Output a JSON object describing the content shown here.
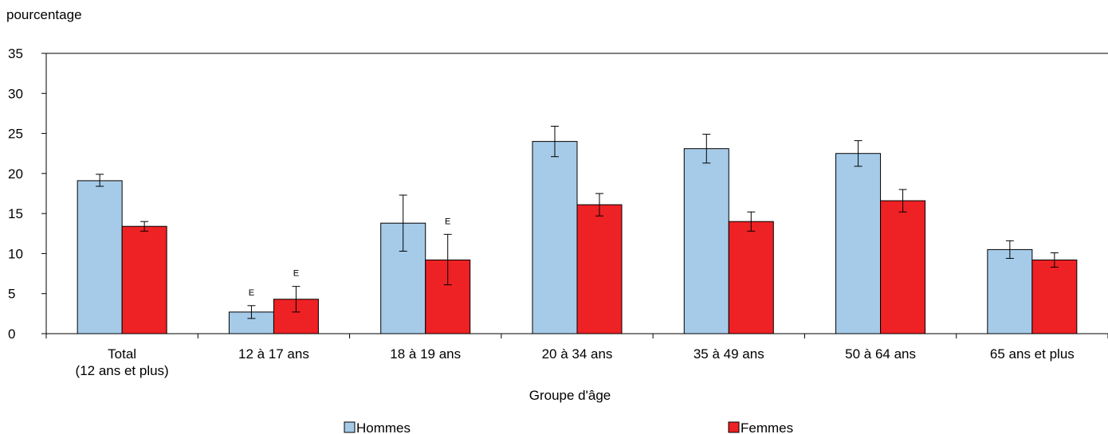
{
  "chart_data": {
    "type": "bar",
    "ylabel": "pourcentage",
    "xlabel": "Groupe d'âge",
    "ylim": [
      0,
      35
    ],
    "yticks": [
      0,
      5,
      10,
      15,
      20,
      25,
      30,
      35
    ],
    "grid": false,
    "legend_position": "bottom",
    "categories": [
      [
        "Total",
        "(12 ans et plus)"
      ],
      [
        "12 à 17 ans"
      ],
      [
        "18 à 19 ans"
      ],
      [
        "20 à 34 ans"
      ],
      [
        "35 à 49 ans"
      ],
      [
        "50 à 64 ans"
      ],
      [
        "65 ans et plus"
      ]
    ],
    "series": [
      {
        "name": "Hommes",
        "color": "#a6cbe9",
        "values": [
          19.1,
          2.7,
          13.8,
          24.0,
          23.1,
          22.5,
          10.5
        ],
        "error_low": [
          18.4,
          1.9,
          10.3,
          22.1,
          21.3,
          20.9,
          9.4
        ],
        "error_high": [
          19.9,
          3.5,
          17.3,
          25.9,
          24.9,
          24.1,
          11.6
        ],
        "flags": [
          "",
          "E",
          "",
          "",
          "",
          "",
          ""
        ]
      },
      {
        "name": "Femmes",
        "color": "#ee2124",
        "values": [
          13.4,
          4.3,
          9.2,
          16.1,
          14.0,
          16.6,
          9.2
        ],
        "error_low": [
          12.8,
          2.7,
          6.1,
          14.7,
          12.8,
          15.2,
          8.3
        ],
        "error_high": [
          14.0,
          5.9,
          12.4,
          17.5,
          15.2,
          18.0,
          10.1
        ],
        "flags": [
          "",
          "E",
          "E",
          "",
          "",
          "",
          ""
        ]
      }
    ]
  }
}
